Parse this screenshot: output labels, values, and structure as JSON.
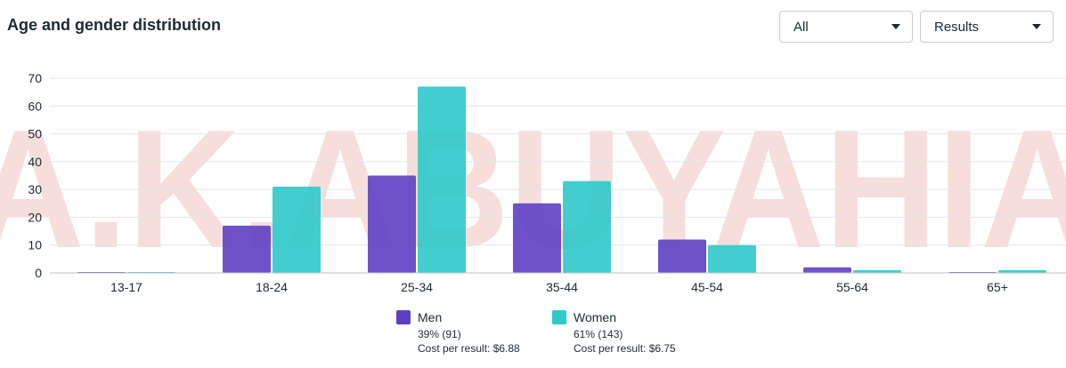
{
  "header": {
    "title": "Age and gender distribution",
    "audience_select": "All",
    "metric_select": "Results"
  },
  "legend": [
    {
      "name": "Men",
      "pct": "39% (91)",
      "cost": "Cost per result: $6.88",
      "color": "#5e3fc4"
    },
    {
      "name": "Women",
      "pct": "61% (143)",
      "cost": "Cost per result: $6.75",
      "color": "#2ec9c9"
    }
  ],
  "watermark": "A.K.ABUYAHIA",
  "chart_data": {
    "type": "bar",
    "title": "Age and gender distribution",
    "categories": [
      "13-17",
      "18-24",
      "25-34",
      "35-44",
      "45-54",
      "55-64",
      "65+"
    ],
    "series": [
      {
        "name": "Men",
        "values": [
          0.3,
          17,
          35,
          25,
          12,
          2,
          0.3
        ]
      },
      {
        "name": "Women",
        "values": [
          0.3,
          31,
          67,
          33,
          10,
          1,
          1
        ]
      }
    ],
    "y_ticks": [
      0,
      10,
      20,
      30,
      40,
      50,
      60,
      70
    ],
    "ylim": [
      0,
      70
    ],
    "grid": true,
    "legend_position": "bottom"
  }
}
